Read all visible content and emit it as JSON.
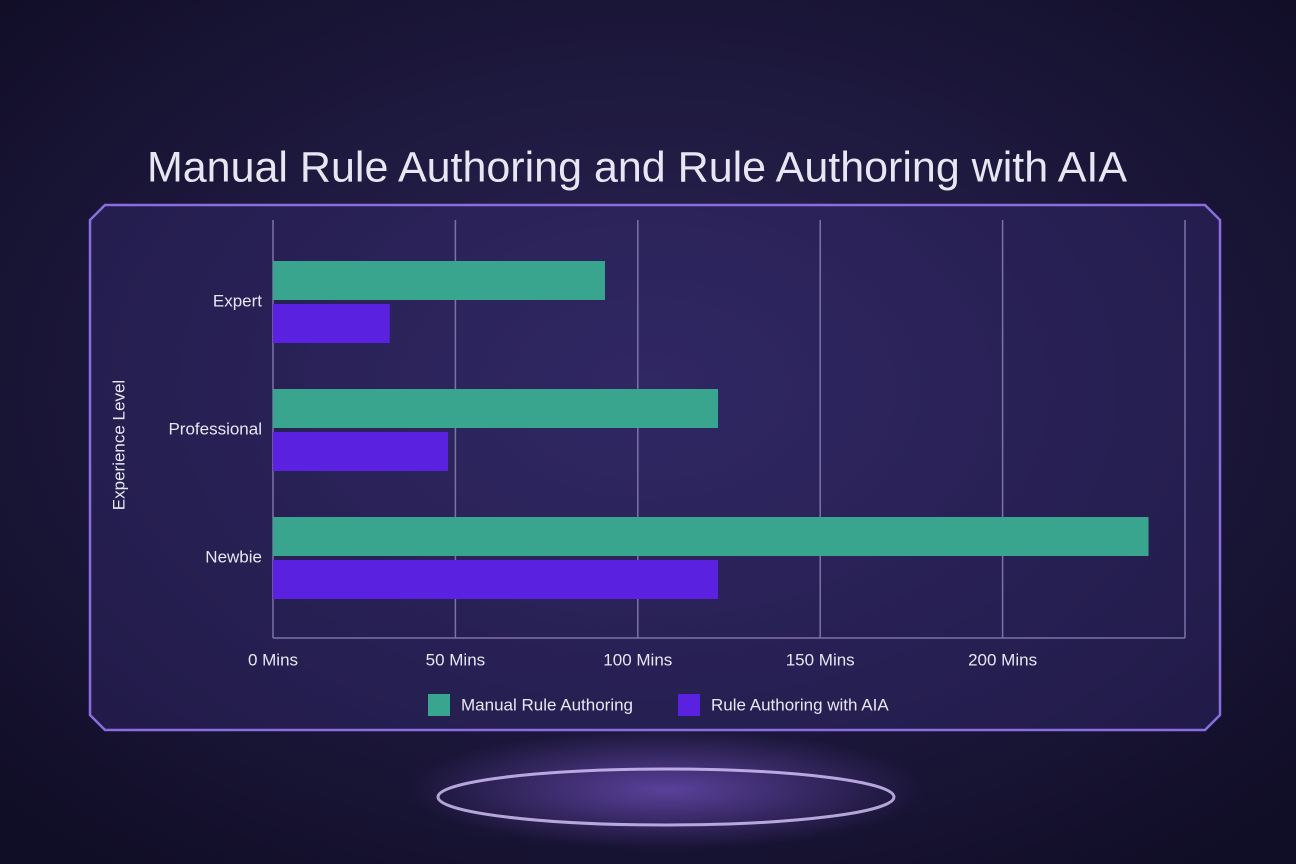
{
  "chart_data": {
    "type": "hbar",
    "title": "Manual Rule Authoring and Rule Authoring with AIA",
    "ylabel": "Experience Level",
    "categories": [
      "Expert",
      "Professional",
      "Newbie"
    ],
    "series": [
      {
        "name": "Manual Rule Authoring",
        "color": "#3aa58f",
        "values": [
          91,
          122,
          240
        ]
      },
      {
        "name": "Rule Authoring with AIA",
        "color": "#5a22e0",
        "values": [
          32,
          48,
          122
        ]
      }
    ],
    "xlim": [
      0,
      250
    ],
    "xticks": [
      {
        "value": 0,
        "label": "0 Mins"
      },
      {
        "value": 50,
        "label": "50 Mins"
      },
      {
        "value": 100,
        "label": "100 Mins"
      },
      {
        "value": 150,
        "label": "150 Mins"
      },
      {
        "value": 200,
        "label": "200 Mins"
      }
    ],
    "grid": true,
    "legend": "bottom"
  }
}
